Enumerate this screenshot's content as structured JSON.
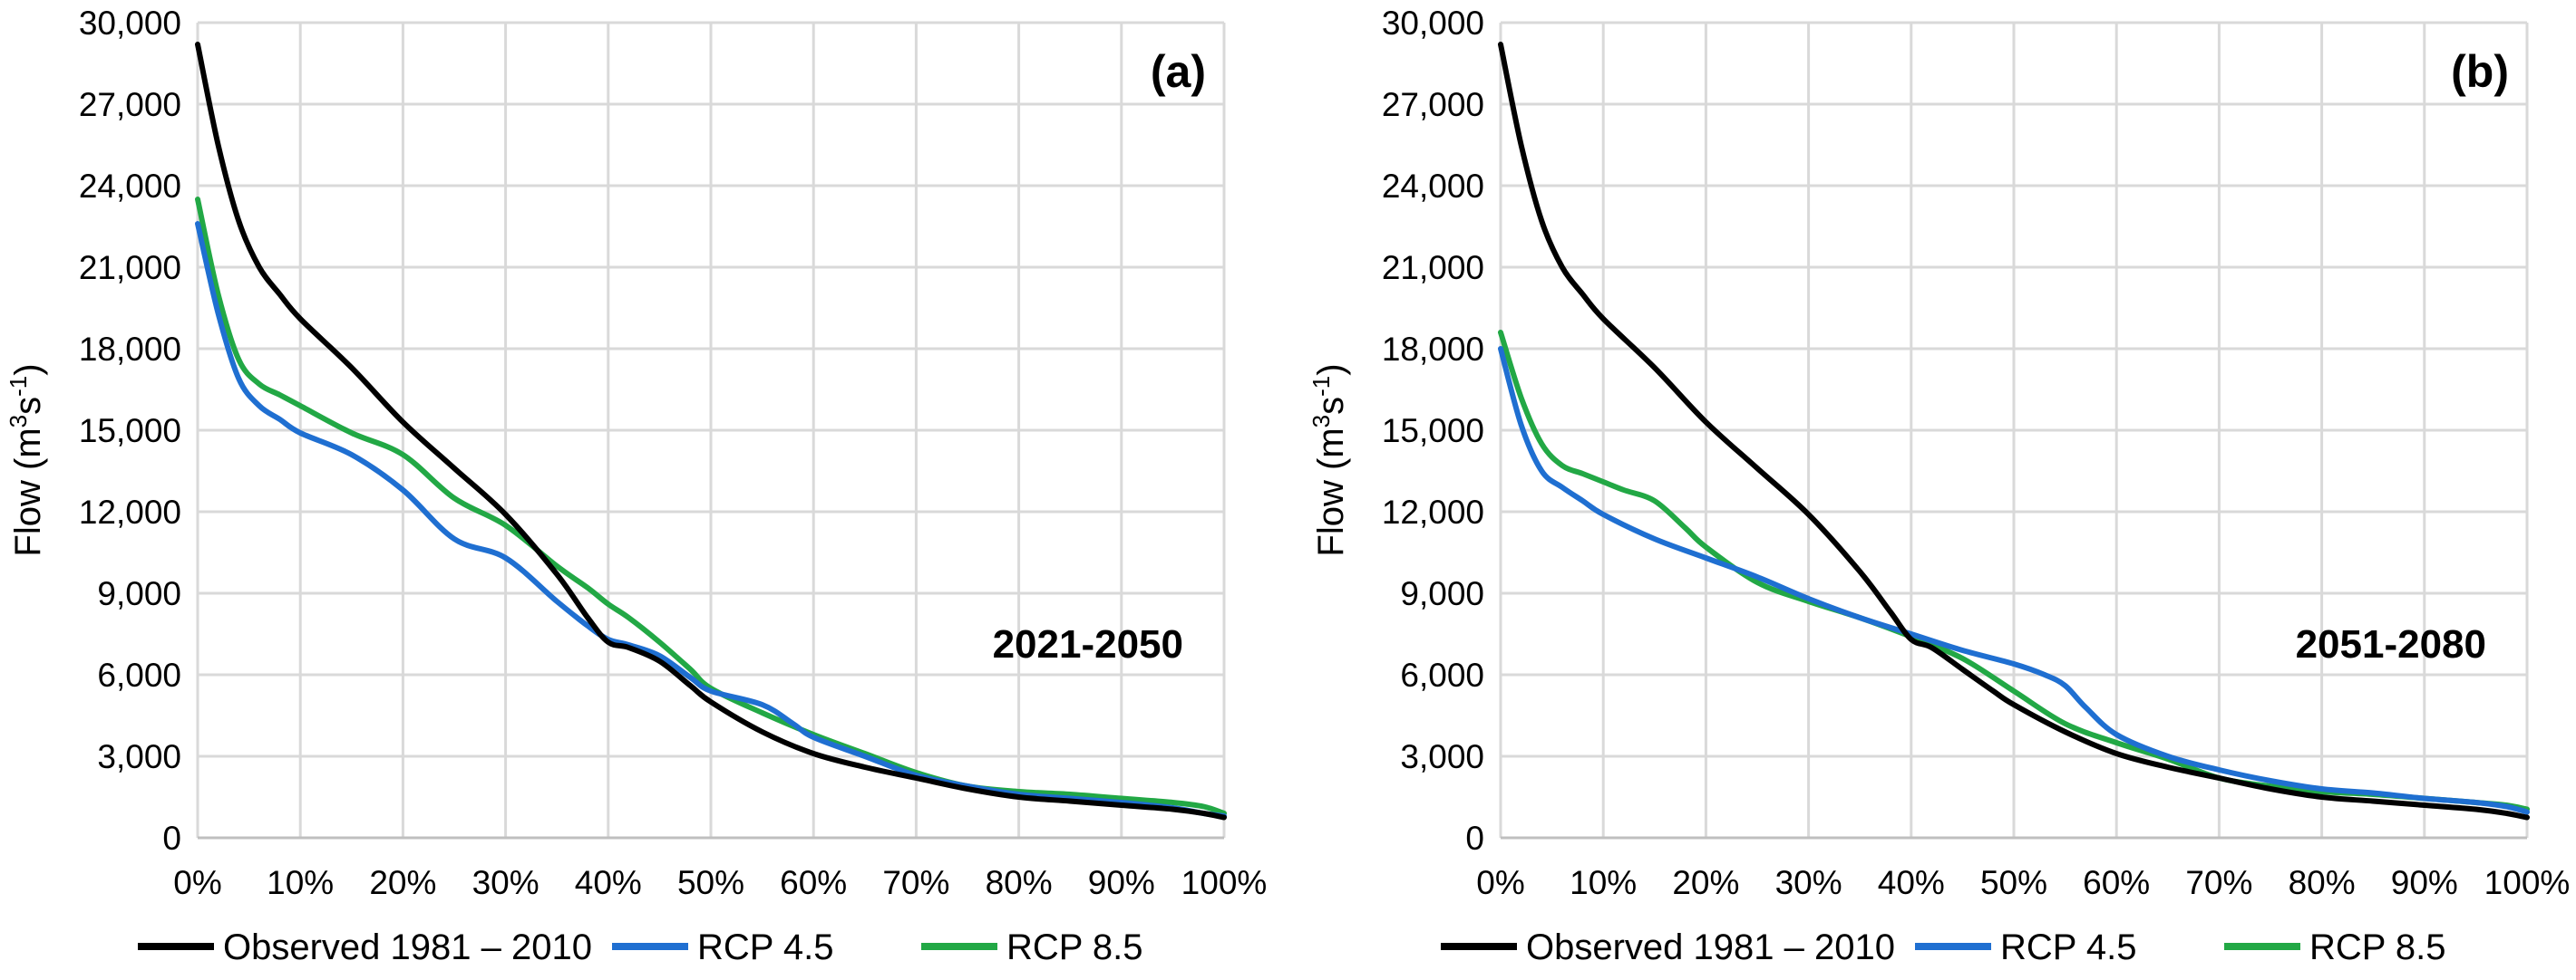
{
  "chart_data": [
    {
      "type": "line",
      "panel_label": "(a)",
      "period_label": "2021-2050",
      "ylabel_main": "Flow (m",
      "ylabel_sup1": "3",
      "ylabel_mid": "s",
      "ylabel_sup2": "-1",
      "ylabel_end": ")",
      "xlabel": "",
      "ylim": [
        0,
        30000
      ],
      "xlim": [
        0,
        100
      ],
      "yticks": [
        0,
        3000,
        6000,
        9000,
        12000,
        15000,
        18000,
        21000,
        24000,
        27000,
        30000
      ],
      "ytick_labels": [
        "0",
        "3,000",
        "6,000",
        "9,000",
        "12,000",
        "15,000",
        "18,000",
        "21,000",
        "24,000",
        "27,000",
        "30,000"
      ],
      "xticks": [
        0,
        10,
        20,
        30,
        40,
        50,
        60,
        70,
        80,
        90,
        100
      ],
      "xtick_labels": [
        "0%",
        "10%",
        "20%",
        "30%",
        "40%",
        "50%",
        "60%",
        "70%",
        "80%",
        "90%",
        "100%"
      ],
      "grid": true,
      "legend_position": "bottom",
      "series": [
        {
          "name": "Observed 1981 – 2010",
          "color": "#000000",
          "x": [
            0,
            2,
            4,
            6,
            8,
            10,
            15,
            20,
            25,
            30,
            35,
            38,
            40,
            42,
            45,
            48,
            50,
            55,
            60,
            65,
            70,
            75,
            80,
            85,
            90,
            95,
            98,
            100
          ],
          "y": [
            29200,
            25500,
            22700,
            21000,
            20000,
            19100,
            17300,
            15300,
            13600,
            11900,
            9700,
            8100,
            7200,
            7000,
            6500,
            5600,
            5000,
            3900,
            3100,
            2600,
            2200,
            1800,
            1500,
            1350,
            1200,
            1050,
            900,
            750
          ]
        },
        {
          "name": "RCP 4.5",
          "color": "#1f6fd1",
          "x": [
            0,
            2,
            4,
            6,
            8,
            10,
            15,
            20,
            25,
            30,
            35,
            38,
            40,
            42,
            45,
            48,
            50,
            55,
            58,
            60,
            65,
            70,
            75,
            80,
            85,
            90,
            95,
            98,
            100
          ],
          "y": [
            22600,
            19300,
            16900,
            15900,
            15400,
            14900,
            14100,
            12800,
            11000,
            10300,
            8700,
            7800,
            7300,
            7100,
            6700,
            5900,
            5400,
            4900,
            4200,
            3700,
            3000,
            2300,
            1900,
            1600,
            1450,
            1300,
            1100,
            900,
            800
          ]
        },
        {
          "name": "RCP 8.5",
          "color": "#22a845",
          "x": [
            0,
            2,
            4,
            6,
            8,
            10,
            15,
            20,
            25,
            30,
            35,
            38,
            40,
            42,
            45,
            48,
            50,
            55,
            60,
            65,
            70,
            75,
            80,
            85,
            90,
            95,
            98,
            100
          ],
          "y": [
            23500,
            20000,
            17600,
            16700,
            16300,
            15900,
            14900,
            14100,
            12500,
            11500,
            10000,
            9200,
            8600,
            8100,
            7200,
            6200,
            5500,
            4600,
            3800,
            3100,
            2400,
            1900,
            1700,
            1600,
            1450,
            1300,
            1150,
            900
          ]
        }
      ]
    },
    {
      "type": "line",
      "panel_label": "(b)",
      "period_label": "2051-2080",
      "ylabel_main": "Flow (m",
      "ylabel_sup1": "3",
      "ylabel_mid": "s",
      "ylabel_sup2": "-1",
      "ylabel_end": ")",
      "xlabel": "",
      "ylim": [
        0,
        30000
      ],
      "xlim": [
        0,
        100
      ],
      "yticks": [
        0,
        3000,
        6000,
        9000,
        12000,
        15000,
        18000,
        21000,
        24000,
        27000,
        30000
      ],
      "ytick_labels": [
        "0",
        "3,000",
        "6,000",
        "9,000",
        "12,000",
        "15,000",
        "18,000",
        "21,000",
        "24,000",
        "27,000",
        "30,000"
      ],
      "xticks": [
        0,
        10,
        20,
        30,
        40,
        50,
        60,
        70,
        80,
        90,
        100
      ],
      "xtick_labels": [
        "0%",
        "10%",
        "20%",
        "30%",
        "40%",
        "50%",
        "60%",
        "70%",
        "80%",
        "90%",
        "100%"
      ],
      "grid": true,
      "legend_position": "bottom",
      "series": [
        {
          "name": "Observed 1981 – 2010",
          "color": "#000000",
          "x": [
            0,
            2,
            4,
            6,
            8,
            10,
            15,
            20,
            25,
            30,
            35,
            38,
            40,
            42,
            45,
            48,
            50,
            55,
            60,
            65,
            70,
            75,
            80,
            85,
            90,
            95,
            98,
            100
          ],
          "y": [
            29200,
            25500,
            22700,
            21000,
            20000,
            19100,
            17300,
            15300,
            13600,
            11900,
            9800,
            8300,
            7300,
            7000,
            6200,
            5400,
            4900,
            3900,
            3100,
            2600,
            2200,
            1800,
            1500,
            1350,
            1200,
            1050,
            900,
            750
          ]
        },
        {
          "name": "RCP 4.5",
          "color": "#1f6fd1",
          "x": [
            0,
            2,
            4,
            6,
            8,
            10,
            15,
            20,
            25,
            30,
            35,
            40,
            45,
            50,
            53,
            55,
            57,
            60,
            65,
            70,
            75,
            80,
            85,
            90,
            95,
            98,
            100
          ],
          "y": [
            18000,
            15200,
            13500,
            12900,
            12400,
            11900,
            11000,
            10300,
            9600,
            8800,
            8100,
            7500,
            6900,
            6400,
            6000,
            5600,
            4800,
            3800,
            3000,
            2500,
            2100,
            1800,
            1650,
            1450,
            1300,
            1150,
            950
          ]
        },
        {
          "name": "RCP 8.5",
          "color": "#22a845",
          "x": [
            0,
            2,
            4,
            6,
            8,
            10,
            12,
            15,
            18,
            20,
            25,
            30,
            35,
            40,
            45,
            50,
            55,
            60,
            65,
            70,
            75,
            80,
            85,
            90,
            95,
            98,
            100
          ],
          "y": [
            18600,
            16200,
            14500,
            13700,
            13400,
            13100,
            12800,
            12400,
            11400,
            10700,
            9400,
            8700,
            8100,
            7400,
            6600,
            5400,
            4200,
            3500,
            2900,
            2200,
            1900,
            1700,
            1600,
            1450,
            1300,
            1200,
            1050
          ]
        }
      ]
    }
  ]
}
